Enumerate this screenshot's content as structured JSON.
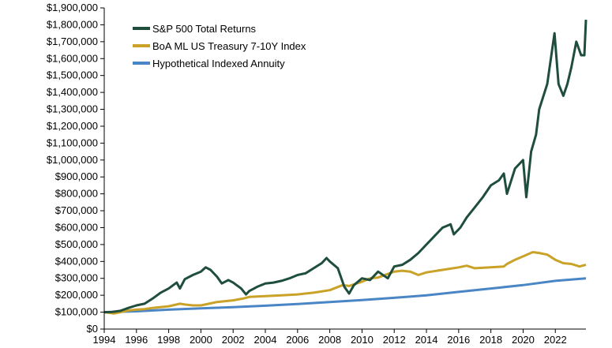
{
  "chart_data": {
    "type": "line",
    "title": "",
    "xlabel": "",
    "ylabel": "",
    "xlim": [
      1994,
      2023.9
    ],
    "ylim": [
      0,
      1900000
    ],
    "grid": false,
    "legend_position": "top-left",
    "x_ticks": [
      1994,
      1996,
      1998,
      2000,
      2002,
      2004,
      2006,
      2008,
      2010,
      2012,
      2014,
      2016,
      2018,
      2020,
      2022
    ],
    "x_tick_labels": [
      "1994",
      "1996",
      "1998",
      "2000",
      "2002",
      "2004",
      "2006",
      "2008",
      "2010",
      "2012",
      "2014",
      "2016",
      "2018",
      "2020",
      "2022"
    ],
    "y_ticks": [
      0,
      100000,
      200000,
      300000,
      400000,
      500000,
      600000,
      700000,
      800000,
      900000,
      1000000,
      1100000,
      1200000,
      1300000,
      1400000,
      1500000,
      1600000,
      1700000,
      1800000,
      1900000
    ],
    "y_tick_labels": [
      "$0",
      "$100,000",
      "$200,000",
      "$300,000",
      "$400,000",
      "$500,000",
      "$600,000",
      "$700,000",
      "$800,000",
      "$900,000",
      "$1,000,000",
      "$1,100,000",
      "$1,200,000",
      "$1,300,000",
      "$1,400,000",
      "$1,500,000",
      "$1,600,000",
      "$1,700,000",
      "$1,800,000",
      "$1,900,000"
    ],
    "series": [
      {
        "name": "S&P 500 Total Returns",
        "color": "#1f4e3d",
        "x": [
          1994,
          1994.5,
          1995,
          1995.5,
          1996,
          1996.5,
          1997,
          1997.5,
          1998,
          1998.5,
          1998.7,
          1999,
          1999.5,
          2000,
          2000.3,
          2000.6,
          2001,
          2001.3,
          2001.7,
          2002,
          2002.5,
          2002.8,
          2003,
          2003.5,
          2004,
          2004.5,
          2005,
          2005.5,
          2006,
          2006.5,
          2007,
          2007.5,
          2007.8,
          2008,
          2008.5,
          2008.9,
          2009.2,
          2009.5,
          2010,
          2010.5,
          2011,
          2011.6,
          2012,
          2012.5,
          2013,
          2013.5,
          2014,
          2014.5,
          2015,
          2015.5,
          2015.7,
          2016.1,
          2016.5,
          2017,
          2017.5,
          2018,
          2018.5,
          2018.8,
          2019,
          2019.5,
          2020,
          2020.2,
          2020.5,
          2020.8,
          2021,
          2021.5,
          2021.95,
          2022.2,
          2022.5,
          2022.75,
          2023,
          2023.3,
          2023.6,
          2023.8,
          2023.9
        ],
        "values": [
          100000,
          102000,
          108000,
          125000,
          140000,
          150000,
          180000,
          215000,
          240000,
          275000,
          240000,
          295000,
          320000,
          340000,
          365000,
          350000,
          310000,
          270000,
          290000,
          275000,
          240000,
          205000,
          225000,
          250000,
          270000,
          275000,
          285000,
          300000,
          320000,
          330000,
          360000,
          390000,
          420000,
          400000,
          360000,
          250000,
          210000,
          260000,
          300000,
          290000,
          340000,
          300000,
          370000,
          380000,
          410000,
          450000,
          500000,
          550000,
          600000,
          620000,
          560000,
          600000,
          660000,
          720000,
          780000,
          850000,
          880000,
          920000,
          800000,
          950000,
          1000000,
          780000,
          1050000,
          1150000,
          1300000,
          1450000,
          1750000,
          1450000,
          1380000,
          1450000,
          1550000,
          1700000,
          1620000,
          1620000,
          1830000
        ]
      },
      {
        "name": "BoA ML US Treasury 7-10Y Index",
        "color": "#c9a227",
        "x": [
          1994,
          1994.3,
          1994.6,
          1995,
          1995.5,
          1996,
          1996.5,
          1997,
          1998,
          1998.7,
          1999,
          1999.5,
          2000,
          2000.5,
          2001,
          2002,
          2002.6,
          2003,
          2004,
          2005,
          2006,
          2007,
          2008,
          2008.8,
          2009.2,
          2010,
          2010.5,
          2011,
          2012,
          2012.5,
          2013,
          2013.5,
          2014,
          2015,
          2016,
          2016.5,
          2017,
          2018,
          2018.8,
          2019,
          2019.5,
          2020,
          2020.6,
          2021,
          2021.5,
          2022,
          2022.5,
          2023,
          2023.5,
          2023.9
        ],
        "values": [
          100000,
          96000,
          92000,
          100000,
          110000,
          115000,
          118000,
          125000,
          135000,
          150000,
          145000,
          140000,
          140000,
          150000,
          160000,
          170000,
          180000,
          190000,
          195000,
          200000,
          205000,
          215000,
          230000,
          260000,
          255000,
          280000,
          300000,
          305000,
          340000,
          345000,
          340000,
          320000,
          335000,
          350000,
          365000,
          375000,
          360000,
          365000,
          370000,
          385000,
          410000,
          430000,
          455000,
          450000,
          440000,
          410000,
          390000,
          385000,
          370000,
          380000
        ]
      },
      {
        "name": "Hypothetical Indexed Annuity",
        "color": "#4a86c5",
        "x": [
          1994,
          1996,
          1998,
          2000,
          2002,
          2004,
          2006,
          2008,
          2010,
          2012,
          2014,
          2016,
          2018,
          2020,
          2022,
          2023.9
        ],
        "values": [
          100000,
          105000,
          115000,
          123000,
          130000,
          138000,
          148000,
          160000,
          172000,
          185000,
          200000,
          220000,
          240000,
          260000,
          285000,
          300000
        ]
      }
    ]
  }
}
